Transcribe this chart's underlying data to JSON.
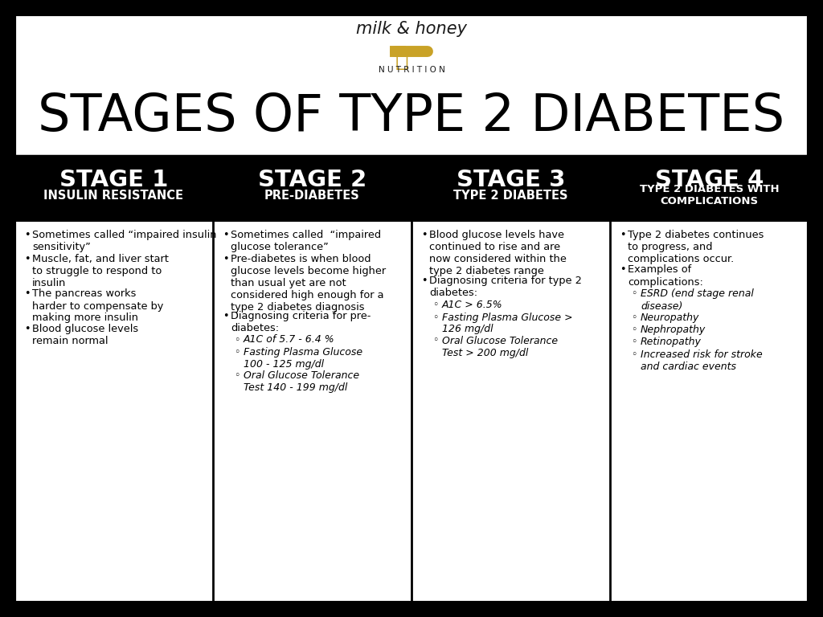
{
  "title": "STAGES OF TYPE 2 DIABETES",
  "logo_text_top": "milk & honey",
  "logo_text_bottom": "NUTRITION",
  "background_color": "#ffffff",
  "outer_border_color": "#000000",
  "header_bg_color": "#000000",
  "header_text_color": "#ffffff",
  "body_bg_color": "#ffffff",
  "body_text_color": "#000000",
  "stages": [
    {
      "title": "STAGE 1",
      "subtitle": "INSULIN RESISTANCE",
      "bullets": [
        "Sometimes called “impaired insulin\nsensitivity”",
        "Muscle, fat, and liver start\nto struggle to respond to\ninsulin",
        "The pancreas works\nharder to compensate by\nmaking more insulin",
        "Blood glucose levels\nremain normal"
      ],
      "sub_bullets": []
    },
    {
      "title": "STAGE 2",
      "subtitle": "PRE-DIABETES",
      "bullets": [
        "Sometimes called  “impaired\nglucose tolerance”",
        "Pre-diabetes is when blood\nglucose levels become higher\nthan usual yet are not\nconsidered high enough for a\ntype 2 diabetes diagnosis",
        "Diagnosing criteria for pre-\ndiabetes:"
      ],
      "sub_bullets": [
        "A1C of 5.7 - 6.4 %",
        "Fasting Plasma Glucose\n100 - 125 mg/dl",
        "Oral Glucose Tolerance\nTest 140 - 199 mg/dl"
      ]
    },
    {
      "title": "STAGE 3",
      "subtitle": "TYPE 2 DIABETES",
      "bullets": [
        "Blood glucose levels have\ncontinued to rise and are\nnow considered within the\ntype 2 diabetes range",
        "Diagnosing criteria for type 2\ndiabetes:"
      ],
      "sub_bullets": [
        "A1C > 6.5%",
        "Fasting Plasma Glucose >\n126 mg/dl",
        "Oral Glucose Tolerance\nTest > 200 mg/dl"
      ]
    },
    {
      "title": "STAGE 4",
      "subtitle": "TYPE 2 DIABETES WITH\nCOMPLICATIONS",
      "bullets": [
        "Type 2 diabetes continues\nto progress, and\ncomplications occur.",
        "Examples of\ncomplications:"
      ],
      "sub_bullets": [
        "ESRD (end stage renal\ndisease)",
        "Neuropathy",
        "Nephropathy",
        "Retinopathy",
        "Increased risk for stroke\nand cardiac events"
      ]
    }
  ]
}
